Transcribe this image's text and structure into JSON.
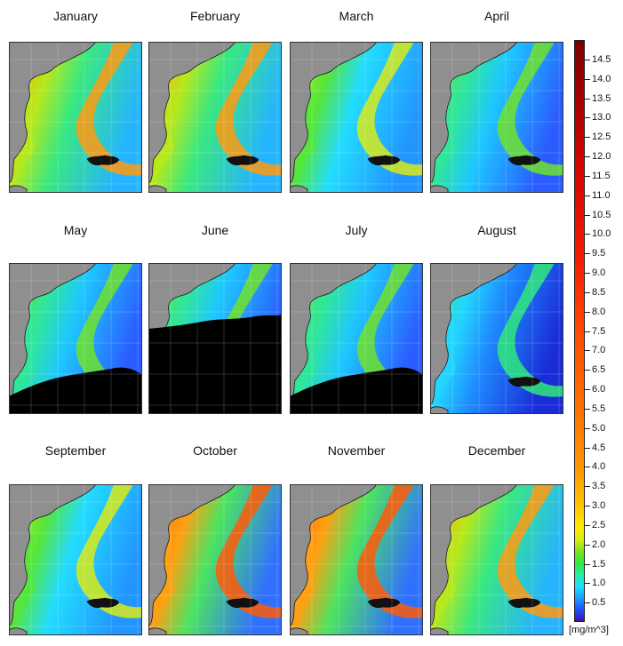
{
  "panels": [
    {
      "month": "January",
      "cloud": "none",
      "chl": "high"
    },
    {
      "month": "February",
      "cloud": "none",
      "chl": "high"
    },
    {
      "month": "March",
      "cloud": "none",
      "chl": "medium"
    },
    {
      "month": "April",
      "cloud": "none",
      "chl": "low"
    },
    {
      "month": "May",
      "cloud": "partial",
      "chl": "low"
    },
    {
      "month": "June",
      "cloud": "heavy",
      "chl": "low"
    },
    {
      "month": "July",
      "cloud": "partial",
      "chl": "low"
    },
    {
      "month": "August",
      "cloud": "none",
      "chl": "verylow"
    },
    {
      "month": "September",
      "cloud": "none",
      "chl": "medium"
    },
    {
      "month": "October",
      "cloud": "none",
      "chl": "veryhigh"
    },
    {
      "month": "November",
      "cloud": "none",
      "chl": "veryhigh"
    },
    {
      "month": "December",
      "cloud": "none",
      "chl": "high"
    }
  ],
  "colorbar": {
    "unit": "[mg/m^3]",
    "min": 0,
    "max": 15,
    "ticks": [
      "0.5",
      "1.0",
      "1.5",
      "2.0",
      "2.5",
      "3.0",
      "3.5",
      "4.0",
      "4.5",
      "5.0",
      "5.5",
      "6.0",
      "6.5",
      "7.0",
      "7.5",
      "8.0",
      "8.5",
      "9.0",
      "9.5",
      "10.0",
      "10.5",
      "11.0",
      "11.5",
      "12.0",
      "12.5",
      "13.0",
      "13.5",
      "14.0",
      "14.5"
    ]
  },
  "colors": {
    "land": "#8f8f8f",
    "cloud_mask": "#000000",
    "coast": "#1a1a1a"
  }
}
